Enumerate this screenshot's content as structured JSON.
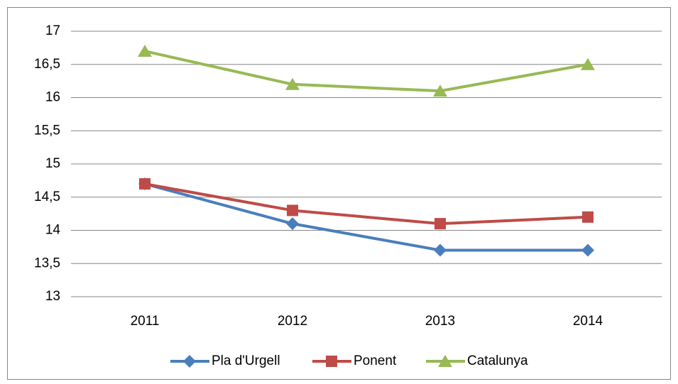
{
  "chart_data": {
    "type": "line",
    "categories": [
      "2011",
      "2012",
      "2013",
      "2014"
    ],
    "series": [
      {
        "name": "Pla d'Urgell",
        "color": "#4a7ebb",
        "marker": "diamond",
        "values": [
          14.7,
          14.1,
          13.7,
          13.7
        ]
      },
      {
        "name": "Ponent",
        "color": "#be4b48",
        "marker": "square",
        "values": [
          14.7,
          14.3,
          14.1,
          14.2
        ]
      },
      {
        "name": "Catalunya",
        "color": "#98b954",
        "marker": "triangle",
        "values": [
          16.7,
          16.2,
          16.1,
          16.5
        ]
      }
    ],
    "ylim": [
      13,
      17
    ],
    "yticks": [
      13,
      {
        "value": 13.5,
        "label": "13,5"
      },
      14,
      {
        "value": 14.5,
        "label": "14,5"
      },
      15,
      {
        "value": 15.5,
        "label": "15,5"
      },
      16,
      {
        "value": 16.5,
        "label": "16,5"
      },
      17
    ],
    "grid": true,
    "legend": "bottom"
  }
}
